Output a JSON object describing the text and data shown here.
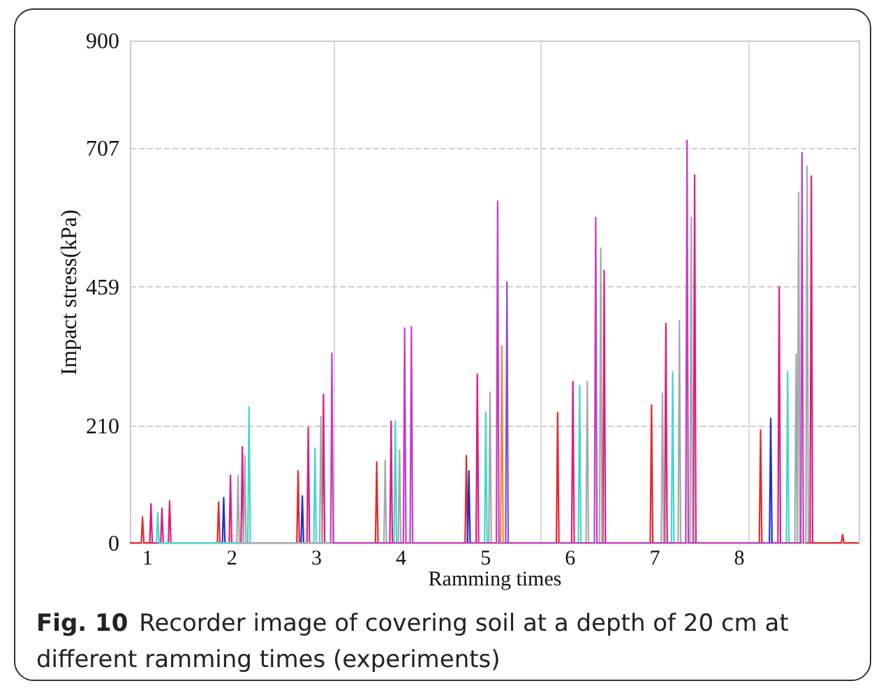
{
  "chart_data": {
    "type": "line",
    "xlabel": "Ramming times",
    "ylabel": "Impact stress(kPa)",
    "annotations": [
      "Fig. 10",
      "Recorder image of covering soil at a depth of 20 cm at different ramming times (experiments)"
    ],
    "xlim": [
      0.8,
      9.42
    ],
    "ylim": [
      0,
      900
    ],
    "yticks": [
      0,
      210,
      459,
      707,
      900
    ],
    "xticks": [
      1,
      2,
      3,
      {
        "value": 3.21,
        "label": null
      },
      4,
      5,
      {
        "value": 5.66,
        "label": null
      },
      6,
      7,
      8,
      {
        "value": 8.11,
        "label": null
      }
    ],
    "grid": true,
    "line_style": "solid",
    "marker": "none",
    "series": [
      {
        "color": "#e8262e",
        "x": [
          0.8,
          0.935,
          0.95,
          0.965,
          1.835,
          1.85,
          1.865,
          2.775,
          2.79,
          2.805,
          3.705,
          3.72,
          3.735,
          4.765,
          4.78,
          4.795,
          5.845,
          5.86,
          5.875,
          6.955,
          6.97,
          6.985,
          8.245,
          8.26,
          8.275,
          9.215,
          9.23,
          9.245,
          9.42
        ],
        "values": [
          0,
          0,
          46,
          0,
          0,
          73,
          0,
          0,
          129,
          0,
          0,
          145,
          0,
          0,
          156,
          0,
          0,
          234,
          0,
          0,
          247,
          0,
          0,
          202,
          0,
          0,
          15,
          0,
          0
        ]
      },
      {
        "color": "#1a2fd8",
        "x": [
          1.895,
          1.91,
          1.925,
          2.825,
          2.84,
          2.855,
          4.795,
          4.81,
          4.825,
          8.365,
          8.38,
          8.395
        ],
        "values": [
          0,
          81,
          0,
          0,
          84,
          0,
          0,
          129,
          0,
          0,
          223,
          0
        ]
      },
      {
        "color": "#e3197f",
        "x": [
          1.035,
          1.05,
          1.065,
          1.165,
          1.18,
          1.195,
          1.255,
          1.27,
          1.285,
          1.975,
          1.99,
          2.005,
          2.115,
          2.13,
          2.145,
          2.895,
          2.91,
          2.925,
          3.075,
          3.09,
          3.105,
          3.875,
          3.89,
          3.905,
          4.895,
          4.91,
          4.925,
          6.025,
          6.04,
          6.055,
          6.395,
          6.41,
          6.425,
          7.125,
          7.14,
          7.155,
          7.465,
          7.48,
          7.495,
          8.465,
          8.48,
          8.495,
          8.845,
          8.86,
          8.875
        ],
        "values": [
          0,
          70,
          0,
          0,
          62,
          0,
          0,
          75,
          0,
          0,
          121,
          0,
          0,
          172,
          0,
          0,
          207,
          0,
          0,
          266,
          0,
          0,
          218,
          0,
          0,
          302,
          0,
          0,
          289,
          0,
          0,
          488,
          0,
          0,
          393,
          0,
          0,
          659,
          0,
          0,
          459,
          0,
          0,
          657,
          0
        ]
      },
      {
        "color": "#3fd9d0",
        "x": [
          1.115,
          1.13,
          1.145,
          2.195,
          2.21,
          2.225,
          2.975,
          2.99,
          3.005,
          3.925,
          3.94,
          3.955,
          4.995,
          5.01,
          5.025,
          6.105,
          6.12,
          6.135,
          7.205,
          7.22,
          7.235,
          8.565,
          8.58,
          8.595
        ],
        "values": [
          0,
          54,
          0,
          0,
          244,
          0,
          0,
          170,
          0,
          0,
          218,
          0,
          0,
          234,
          0,
          0,
          282,
          0,
          0,
          306,
          0,
          0,
          306,
          0
        ]
      },
      {
        "color": "#a3aaaa",
        "x": [
          2.065,
          2.08,
          2.095,
          2.145,
          2.16,
          2.175,
          3.045,
          3.06,
          3.075,
          3.805,
          3.82,
          3.835,
          3.975,
          3.99,
          4.005,
          5.045,
          5.06,
          5.075,
          6.195,
          6.21,
          6.225,
          6.355,
          6.37,
          6.385,
          7.085,
          7.1,
          7.115,
          7.285,
          7.3,
          7.315,
          7.425,
          7.44,
          7.455,
          8.665,
          8.68,
          8.695,
          8.695,
          8.71,
          8.725,
          8.795,
          8.81,
          8.825
        ],
        "values": [
          0,
          121,
          0,
          0,
          156,
          0,
          0,
          226,
          0,
          0,
          148,
          0,
          0,
          166,
          0,
          0,
          270,
          0,
          0,
          289,
          0,
          0,
          528,
          0,
          0,
          268,
          0,
          0,
          398,
          0,
          0,
          583,
          0,
          0,
          338,
          0,
          0,
          628,
          0,
          0,
          675,
          0
        ]
      },
      {
        "color": "#c43cc4",
        "x": [
          3.175,
          3.19,
          3.205,
          4.035,
          4.05,
          4.065,
          4.115,
          4.13,
          4.145,
          5.135,
          5.15,
          5.165,
          6.295,
          6.31,
          6.325,
          7.375,
          7.39,
          7.405,
          8.735,
          8.75,
          8.765
        ],
        "values": [
          0,
          340,
          0,
          0,
          385,
          0,
          0,
          387,
          0,
          0,
          612,
          0,
          0,
          583,
          0,
          0,
          721,
          0,
          0,
          699,
          0
        ]
      },
      {
        "color": "#f08a3c",
        "x": [
          5.185,
          5.2,
          5.215
        ],
        "values": [
          0,
          353,
          0
        ]
      },
      {
        "color": "#8a4cc8",
        "x": [
          5.245,
          5.26,
          5.275
        ],
        "values": [
          0,
          467,
          0
        ]
      }
    ]
  }
}
